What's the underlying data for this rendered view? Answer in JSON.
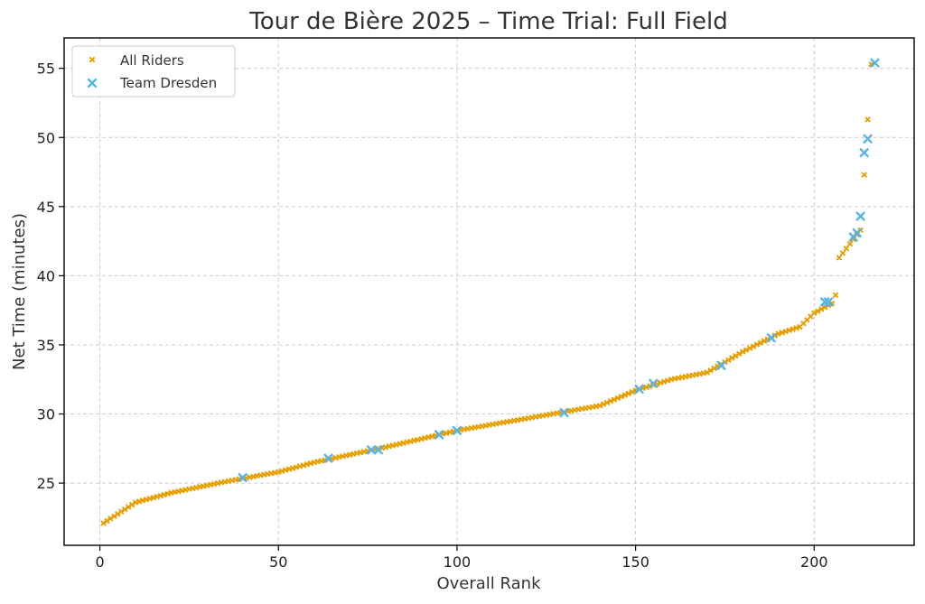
{
  "chart_data": {
    "type": "scatter",
    "title": "Tour de Bière 2025 – Time Trial: Full Field",
    "xlabel": "Overall Rank",
    "ylabel": "Net Time (minutes)",
    "xlim": [
      -10,
      228
    ],
    "ylim": [
      20.5,
      57.2
    ],
    "xticks": [
      0,
      50,
      100,
      150,
      200
    ],
    "yticks": [
      25,
      30,
      35,
      40,
      45,
      50,
      55
    ],
    "grid": true,
    "legend_position": "upper-left",
    "colors": {
      "all_riders": "#E69F00",
      "team_dresden": "#56B4E9"
    },
    "anchors": {
      "ranks": [
        1,
        10,
        20,
        35,
        50,
        60,
        80,
        100,
        120,
        140,
        150,
        160,
        170,
        180,
        190,
        196,
        200,
        205,
        206,
        207,
        210,
        213,
        216
      ],
      "times": [
        22.1,
        23.6,
        24.3,
        25.1,
        25.8,
        26.5,
        27.6,
        28.8,
        29.7,
        30.6,
        31.7,
        32.5,
        33.0,
        34.5,
        35.8,
        36.3,
        37.3,
        38.0,
        38.6,
        41.3,
        42.3,
        43.3,
        55.3
      ]
    },
    "series": [
      {
        "name": "All Riders",
        "marker": "x-small"
      },
      {
        "name": "Team Dresden",
        "marker": "x-large",
        "x": [
          40,
          64,
          76,
          78,
          95,
          100,
          130,
          151,
          155,
          174,
          188,
          203,
          204,
          211,
          212,
          213,
          214,
          215,
          217
        ],
        "y": [
          25.4,
          26.8,
          27.4,
          27.4,
          28.5,
          28.8,
          30.1,
          31.8,
          32.2,
          33.5,
          35.5,
          38.1,
          38.1,
          42.8,
          43.1,
          44.3,
          48.9,
          49.9,
          55.4
        ]
      }
    ]
  }
}
